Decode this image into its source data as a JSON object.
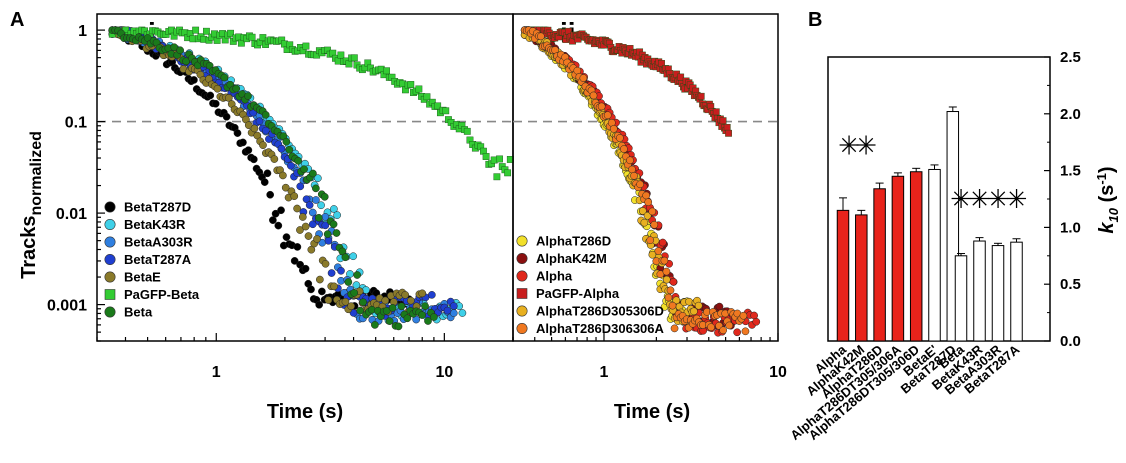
{
  "panel_labels": {
    "a": "A",
    "b": "B"
  },
  "chart_data": [
    {
      "type": "scatter",
      "panel": "A",
      "subpanel": "i",
      "ylabel_main": "Tracks",
      "ylabel_sub": "normalized",
      "xlabel": "Time (s)",
      "x_scale": "log",
      "y_scale": "log",
      "xlim": [
        0.3,
        20
      ],
      "ylim": [
        0.0004,
        1.5
      ],
      "x_tick_labels": [
        "1",
        "10"
      ],
      "y_tick_labels": [
        "1",
        "0.1",
        "0.01",
        "0.001"
      ],
      "reference_line_y": 0.1,
      "legend_position": "bottom-left",
      "series": [
        {
          "name": "BetaT287D",
          "color": "#000000",
          "marker": "circle",
          "decay_k": 1.35,
          "floor": 0.001,
          "tmax": 7
        },
        {
          "name": "BetaK43R",
          "color": "#3fd0e8",
          "marker": "circle",
          "decay_k": 0.75,
          "floor": 0.0008,
          "tmax": 12
        },
        {
          "name": "BetaA303R",
          "color": "#2f7fe0",
          "marker": "circle",
          "decay_k": 0.85,
          "floor": 0.0008,
          "tmax": 11
        },
        {
          "name": "BetaT287A",
          "color": "#1f3fd0",
          "marker": "circle",
          "decay_k": 0.88,
          "floor": 0.0009,
          "tmax": 11
        },
        {
          "name": "BetaE",
          "color": "#8a7a2a",
          "marker": "circle",
          "decay_k": 1.05,
          "floor": 0.001,
          "tmax": 8
        },
        {
          "name": "PaGFP-Beta",
          "color": "#33cc33",
          "marker": "square",
          "decay_k": 0.135,
          "floor": 0.03,
          "tmax": 20
        },
        {
          "name": "Beta",
          "color": "#1a7a1a",
          "marker": "circle",
          "decay_k": 0.78,
          "floor": 0.0007,
          "tmax": 9
        }
      ]
    },
    {
      "type": "scatter",
      "panel": "A",
      "subpanel": "ii",
      "xlabel": "Time (s)",
      "x_scale": "log",
      "y_scale": "log",
      "xlim": [
        0.3,
        10
      ],
      "ylim": [
        0.0004,
        1.5
      ],
      "x_tick_labels": [
        "1",
        "10"
      ],
      "reference_line_y": 0.1,
      "legend_position": "bottom-left",
      "series": [
        {
          "name": "AlphaT286D",
          "color": "#f2e02a",
          "marker": "circle",
          "decay_k": 1.6,
          "floor": 0.0008,
          "tmax": 3
        },
        {
          "name": "AlphaK42M",
          "color": "#8a1010",
          "marker": "circle",
          "decay_k": 1.4,
          "floor": 0.0007,
          "tmax": 5.5
        },
        {
          "name": "Alpha",
          "color": "#e0281c",
          "marker": "circle",
          "decay_k": 1.35,
          "floor": 0.0006,
          "tmax": 7.5
        },
        {
          "name": "PaGFP-Alpha",
          "color": "#c81e1e",
          "marker": "square",
          "decay_k": 0.33,
          "floor": 0.05,
          "tmax": 5.2
        },
        {
          "name": "AlphaT286D305306D",
          "color": "#e8b020",
          "marker": "circle",
          "decay_k": 1.55,
          "floor": 0.0008,
          "tmax": 3.5
        },
        {
          "name": "AlphaT286D306306A",
          "color": "#f07820",
          "marker": "circle",
          "decay_k": 1.45,
          "floor": 0.0006,
          "tmax": 6.5
        }
      ]
    },
    {
      "type": "bar",
      "panel": "B",
      "ylabel": "k10 (s-1)",
      "ylabel_parts": {
        "k": "k",
        "sub": "10",
        "unit_open": " (s",
        "sup": "-1",
        "unit_close": ")"
      },
      "y_axis_side": "right",
      "ylim": [
        0,
        2.5
      ],
      "y_tick_labels": [
        "0.0",
        "0.5",
        "1.0",
        "1.5",
        "2.0",
        "2.5"
      ],
      "categories": [
        "Alpha",
        "AlphaK42M",
        "AlphaT286D",
        "AlphaT286DT305/306A",
        "AlphaT286DT305/306D",
        "BetaE'",
        "BetaT287D",
        "Beta",
        "BetaK43R",
        "BetaA303R",
        "BetaT287A"
      ],
      "values": [
        1.15,
        1.11,
        1.34,
        1.45,
        1.49,
        1.51,
        2.02,
        0.75,
        0.88,
        0.84,
        0.87
      ],
      "errors": [
        0.11,
        0.04,
        0.05,
        0.03,
        0.03,
        0.04,
        0.04,
        0.02,
        0.03,
        0.02,
        0.03
      ],
      "fills": [
        "#e8231b",
        "#e8231b",
        "#e8231b",
        "#e8231b",
        "#e8231b",
        "#ffffff",
        "#ffffff",
        "#ffffff",
        "#ffffff",
        "#ffffff",
        "#ffffff"
      ],
      "significance": [
        {
          "group": "alpha",
          "marks": "**",
          "count": 2
        },
        {
          "group": "beta",
          "marks": "****",
          "count": 4
        }
      ]
    }
  ]
}
